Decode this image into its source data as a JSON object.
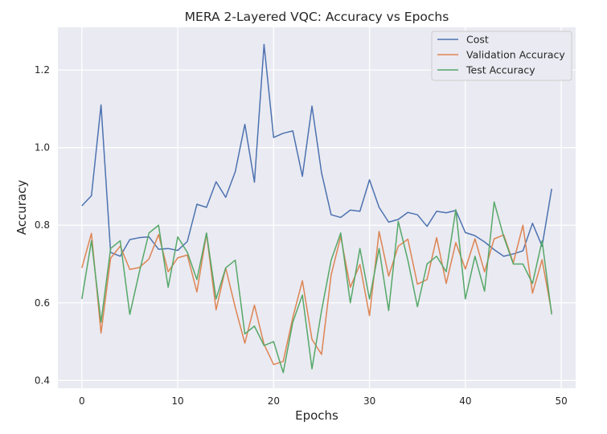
{
  "chart_data": {
    "type": "line",
    "title": "MERA 2-Layered VQC: Accuracy vs Epochs",
    "xlabel": "Epochs",
    "ylabel": "Accuracy",
    "xlim": [
      -2.5,
      51.5
    ],
    "ylim": [
      0.38,
      1.31
    ],
    "xticks": [
      0,
      10,
      20,
      30,
      40,
      50
    ],
    "yticks": [
      0.4,
      0.6,
      0.8,
      1.0,
      1.2
    ],
    "ytick_labels": [
      "0.4",
      "0.6",
      "0.8",
      "1.0",
      "1.2"
    ],
    "grid": true,
    "legend_position": "top-right",
    "x": [
      0,
      1,
      2,
      3,
      4,
      5,
      6,
      7,
      8,
      9,
      10,
      11,
      12,
      13,
      14,
      15,
      16,
      17,
      18,
      19,
      20,
      21,
      22,
      23,
      24,
      25,
      26,
      27,
      28,
      29,
      30,
      31,
      32,
      33,
      34,
      35,
      36,
      37,
      38,
      39,
      40,
      41,
      42,
      43,
      44,
      45,
      46,
      47,
      48,
      49
    ],
    "series": [
      {
        "name": "Cost",
        "color": "#4c72b0",
        "values": [
          0.85,
          0.876,
          1.11,
          0.73,
          0.72,
          0.763,
          0.768,
          0.77,
          0.738,
          0.74,
          0.735,
          0.758,
          0.854,
          0.846,
          0.912,
          0.872,
          0.938,
          1.06,
          0.911,
          1.266,
          1.026,
          1.037,
          1.043,
          0.926,
          1.107,
          0.935,
          0.827,
          0.82,
          0.839,
          0.836,
          0.917,
          0.846,
          0.808,
          0.815,
          0.833,
          0.827,
          0.797,
          0.836,
          0.832,
          0.838,
          0.781,
          0.773,
          0.757,
          0.737,
          0.72,
          0.726,
          0.734,
          0.805,
          0.746,
          0.894
        ]
      },
      {
        "name": "Validation Accuracy",
        "color": "#dd8452",
        "values": [
          0.69,
          0.779,
          0.522,
          0.715,
          0.746,
          0.686,
          0.691,
          0.713,
          0.776,
          0.68,
          0.716,
          0.723,
          0.628,
          0.778,
          0.582,
          0.69,
          0.588,
          0.496,
          0.594,
          0.493,
          0.441,
          0.449,
          0.562,
          0.657,
          0.506,
          0.467,
          0.672,
          0.771,
          0.64,
          0.699,
          0.567,
          0.784,
          0.669,
          0.746,
          0.764,
          0.648,
          0.66,
          0.768,
          0.65,
          0.755,
          0.687,
          0.765,
          0.68,
          0.765,
          0.775,
          0.703,
          0.8,
          0.625,
          0.711,
          0.575
        ]
      },
      {
        "name": "Test Accuracy",
        "color": "#55a868",
        "values": [
          0.61,
          0.76,
          0.55,
          0.74,
          0.76,
          0.57,
          0.68,
          0.78,
          0.8,
          0.64,
          0.77,
          0.73,
          0.66,
          0.78,
          0.61,
          0.69,
          0.71,
          0.52,
          0.54,
          0.49,
          0.5,
          0.42,
          0.55,
          0.62,
          0.43,
          0.58,
          0.71,
          0.78,
          0.6,
          0.74,
          0.61,
          0.74,
          0.58,
          0.81,
          0.71,
          0.59,
          0.7,
          0.72,
          0.68,
          0.84,
          0.61,
          0.72,
          0.63,
          0.86,
          0.77,
          0.7,
          0.7,
          0.65,
          0.76,
          0.57
        ]
      }
    ]
  }
}
